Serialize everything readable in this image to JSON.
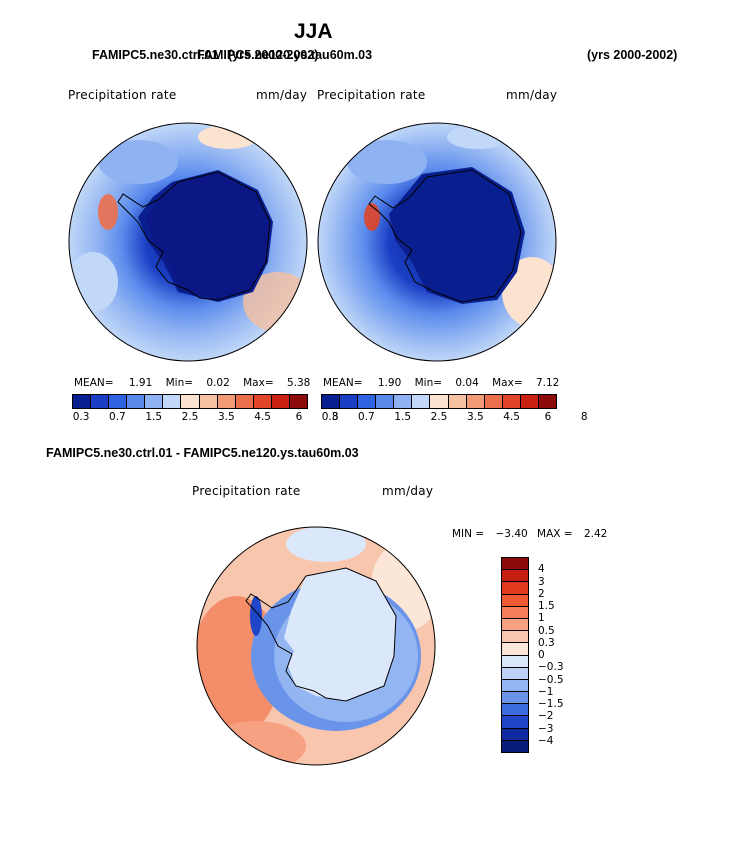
{
  "title": "JJA",
  "subtitle_left_overlap_a": "FAMIPC5.ne30.ctrl.01",
  "subtitle_left_overlap_b": "FAMIPC5.ne120.ys.tau60m.03",
  "subtitle_yrs_a": "(yrs 2000-2002)",
  "subtitle_yrs_b": "(yrs 2000-2002)",
  "panels": [
    {
      "label": "Precipitation rate",
      "units": "mm/day",
      "mean_label": "MEAN=",
      "mean": "1.91",
      "min_label": "Min=",
      "min": "0.02",
      "max_label": "Max=",
      "max": "5.38"
    },
    {
      "label": "Precipitation rate",
      "units": "mm/day",
      "mean_label": "MEAN=",
      "mean": "1.90",
      "min_label": "Min=",
      "min": "0.04",
      "max_label": "Max=",
      "max": "7.12"
    }
  ],
  "colorbar_ticks": [
    "0.3",
    "0.7",
    "1.5",
    "2.5",
    "3.5",
    "4.5",
    "6",
    "8"
  ],
  "colorbar_colors": [
    "#0a1f8f",
    "#1b3fc4",
    "#2f63e0",
    "#5a8bec",
    "#8fb2f2",
    "#c2d8f8",
    "#fbe3cf",
    "#f6c1a0",
    "#f29a75",
    "#ec6f4c",
    "#e04528",
    "#c82012",
    "#8c0a0a"
  ],
  "diff_title": "FAMIPC5.ne30.ctrl.01 - FAMIPC5.ne120.ys.tau60m.03",
  "diff_panel": {
    "label": "Precipitation rate",
    "units": "mm/day",
    "min_label": "MIN =",
    "min": "−3.40",
    "max_label": "MAX =",
    "max": "2.42"
  },
  "diff_ticks": [
    "4",
    "3",
    "2",
    "1.5",
    "1",
    "0.5",
    "0.3",
    "0",
    "−0.3",
    "−0.5",
    "−1",
    "−1.5",
    "−2",
    "−3",
    "−4"
  ],
  "diff_colors": [
    "#8c0a0a",
    "#c41f10",
    "#e23a1e",
    "#ef5a36",
    "#f37e57",
    "#f6a282",
    "#f8c6ad",
    "#fbe6d8",
    "#dbe8fb",
    "#bcd3f7",
    "#93b6f2",
    "#6a94ea",
    "#3d6be0",
    "#1f45c8",
    "#0e2a9e",
    "#081c78"
  ],
  "chart_data": [
    {
      "type": "heatmap",
      "title": "Precipitation rate",
      "units": "mm/day",
      "stats": {
        "mean": 1.91,
        "min": 0.02,
        "max": 5.38
      },
      "levels": [
        0.3,
        0.7,
        1.5,
        2.5,
        3.5,
        4.5,
        6,
        8
      ],
      "region": "Antarctic polar stereographic"
    },
    {
      "type": "heatmap",
      "title": "Precipitation rate",
      "units": "mm/day",
      "stats": {
        "mean": 1.9,
        "min": 0.04,
        "max": 7.12
      },
      "levels": [
        0.3,
        0.7,
        1.5,
        2.5,
        3.5,
        4.5,
        6,
        8
      ],
      "region": "Antarctic polar stereographic"
    },
    {
      "type": "heatmap",
      "title": "Precipitation rate",
      "units": "mm/day",
      "stats": {
        "min": -3.4,
        "max": 2.42
      },
      "levels": [
        -4,
        -3,
        -2,
        -1.5,
        -1,
        -0.5,
        -0.3,
        0,
        0.3,
        0.5,
        1,
        1.5,
        2,
        3,
        4
      ],
      "region": "Antarctic polar stereographic"
    }
  ]
}
